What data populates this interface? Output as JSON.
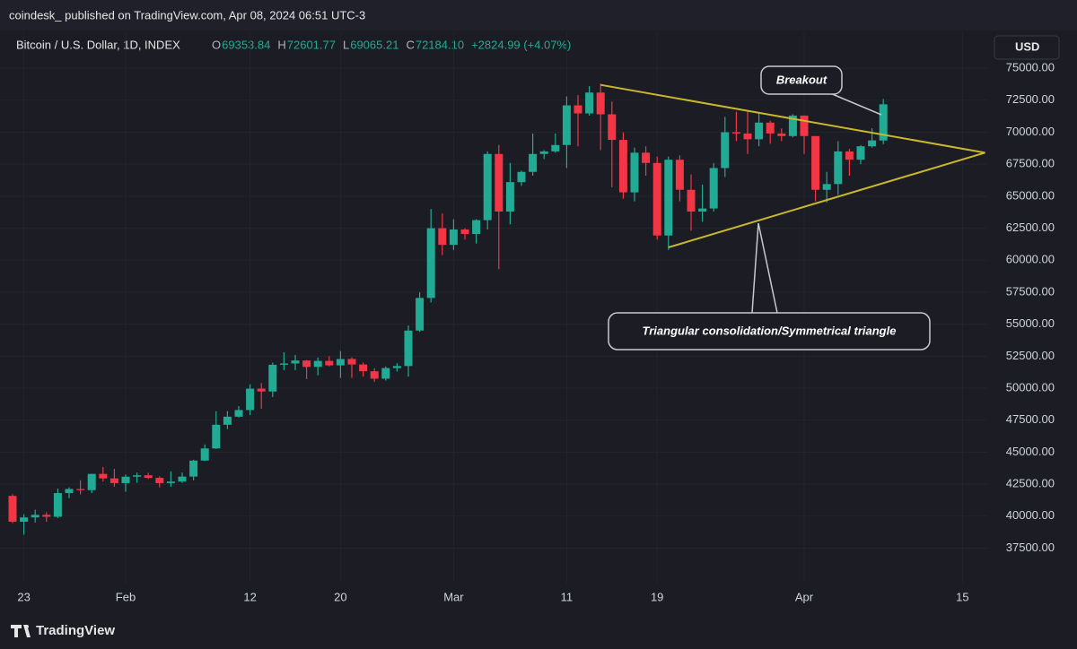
{
  "header": {
    "published": "coindesk_ published on TradingView.com, Apr 08, 2024 06:51 UTC-3",
    "symbol": "Bitcoin / U.S. Dollar, 1D, INDEX",
    "ohlc": [
      {
        "label": "O",
        "value": "69353.84"
      },
      {
        "label": "H",
        "value": "72601.77"
      },
      {
        "label": "L",
        "value": "69065.21"
      },
      {
        "label": "C",
        "value": "72184.10"
      }
    ],
    "change": "+2824.99 (+4.07%)",
    "currency": "USD"
  },
  "footer": {
    "brand": "TradingView"
  },
  "chart_data": {
    "type": "candlestick",
    "up_color": "#22ab94",
    "down_color": "#f23645",
    "grid": true,
    "x": [
      "2024-01-22",
      "2024-01-23",
      "2024-01-24",
      "2024-01-25",
      "2024-01-26",
      "2024-01-27",
      "2024-01-28",
      "2024-01-29",
      "2024-01-30",
      "2024-01-31",
      "2024-02-01",
      "2024-02-02",
      "2024-02-03",
      "2024-02-04",
      "2024-02-05",
      "2024-02-06",
      "2024-02-07",
      "2024-02-08",
      "2024-02-09",
      "2024-02-10",
      "2024-02-11",
      "2024-02-12",
      "2024-02-13",
      "2024-02-14",
      "2024-02-15",
      "2024-02-16",
      "2024-02-17",
      "2024-02-18",
      "2024-02-19",
      "2024-02-20",
      "2024-02-21",
      "2024-02-22",
      "2024-02-23",
      "2024-02-24",
      "2024-02-25",
      "2024-02-26",
      "2024-02-27",
      "2024-02-28",
      "2024-02-29",
      "2024-03-01",
      "2024-03-02",
      "2024-03-03",
      "2024-03-04",
      "2024-03-05",
      "2024-03-06",
      "2024-03-07",
      "2024-03-08",
      "2024-03-09",
      "2024-03-10",
      "2024-03-11",
      "2024-03-12",
      "2024-03-13",
      "2024-03-14",
      "2024-03-15",
      "2024-03-16",
      "2024-03-17",
      "2024-03-18",
      "2024-03-19",
      "2024-03-20",
      "2024-03-21",
      "2024-03-22",
      "2024-03-23",
      "2024-03-24",
      "2024-03-25",
      "2024-03-26",
      "2024-03-27",
      "2024-03-28",
      "2024-03-29",
      "2024-03-30",
      "2024-03-31",
      "2024-04-01",
      "2024-04-02",
      "2024-04-03",
      "2024-04-04",
      "2024-04-05",
      "2024-04-06",
      "2024-04-07",
      "2024-04-08"
    ],
    "open": [
      41580,
      39560,
      39900,
      40100,
      39950,
      41800,
      42120,
      42030,
      43300,
      42950,
      42580,
      43080,
      43190,
      42990,
      42580,
      42700,
      43090,
      44340,
      45290,
      47140,
      47770,
      48290,
      49960,
      49740,
      51830,
      51930,
      52160,
      51660,
      52130,
      51780,
      52280,
      51850,
      51320,
      50740,
      51570,
      51730,
      54500,
      57050,
      62500,
      61200,
      62400,
      62050,
      63130,
      68300,
      63800,
      66100,
      66900,
      68300,
      68500,
      69000,
      72100,
      71470,
      73100,
      71400,
      69400,
      65300,
      68400,
      67600,
      61930,
      67850,
      65500,
      63800,
      64040,
      67200,
      70000,
      69900,
      69450,
      70750,
      69900,
      69700,
      71300,
      69700,
      65500,
      65950,
      68500,
      67850,
      68900,
      69353.84
    ],
    "high": [
      41700,
      40150,
      40500,
      40300,
      42150,
      42250,
      42800,
      43300,
      43850,
      43700,
      43250,
      43400,
      43380,
      43100,
      43500,
      43400,
      44400,
      45600,
      48200,
      48200,
      48600,
      50300,
      50400,
      52000,
      52800,
      52600,
      52200,
      52400,
      52500,
      52900,
      52400,
      52000,
      51550,
      51700,
      51950,
      54900,
      57500,
      64000,
      63650,
      63200,
      62500,
      63200,
      68500,
      69000,
      67600,
      67000,
      69900,
      68600,
      69900,
      72800,
      72900,
      73600,
      73800,
      72400,
      70000,
      68800,
      68900,
      68100,
      68100,
      68200,
      66700,
      65900,
      67600,
      71200,
      71600,
      71700,
      71500,
      70900,
      70300,
      71400,
      71300,
      69700,
      66900,
      69300,
      68700,
      69000,
      70300,
      72601.77
    ],
    "low": [
      39450,
      38550,
      39500,
      39550,
      39850,
      41400,
      41700,
      41800,
      42700,
      42300,
      41900,
      42600,
      42900,
      42250,
      42300,
      42600,
      42800,
      44300,
      45250,
      46800,
      47700,
      47900,
      48400,
      49300,
      51400,
      51400,
      50700,
      51000,
      51700,
      50800,
      50800,
      50900,
      50500,
      50600,
      51300,
      50900,
      54400,
      56700,
      60400,
      60800,
      61600,
      61300,
      62400,
      59300,
      62800,
      65800,
      66600,
      67900,
      68400,
      67200,
      68900,
      71300,
      68600,
      65700,
      64800,
      64600,
      66600,
      61600,
      60800,
      64600,
      62300,
      63000,
      63800,
      66500,
      69300,
      68300,
      68900,
      69100,
      69300,
      69600,
      68300,
      64600,
      64500,
      65100,
      66600,
      67500,
      68800,
      69065.21
    ],
    "close": [
      39560,
      39900,
      40100,
      39950,
      41800,
      42120,
      42030,
      43300,
      42950,
      42580,
      43080,
      43190,
      42990,
      42580,
      42700,
      43090,
      44340,
      45290,
      47140,
      47770,
      48290,
      49960,
      49740,
      51830,
      51930,
      52160,
      51660,
      52130,
      51780,
      52280,
      51850,
      51320,
      50740,
      51570,
      51730,
      54500,
      57050,
      62500,
      61200,
      62400,
      62050,
      63130,
      68300,
      63800,
      66100,
      66900,
      68300,
      68500,
      69000,
      72100,
      71470,
      73100,
      71400,
      69400,
      65300,
      68400,
      67600,
      61930,
      67850,
      65500,
      63800,
      64040,
      67200,
      70000,
      69900,
      69450,
      70750,
      69900,
      69700,
      71300,
      69700,
      65500,
      65950,
      68500,
      67850,
      68900,
      69360,
      72184.1
    ],
    "ylim": [
      34800,
      77250
    ],
    "yticks": [
      {
        "value": 37500,
        "label": "37500.00"
      },
      {
        "value": 40000,
        "label": "40000.00"
      },
      {
        "value": 42500,
        "label": "42500.00"
      },
      {
        "value": 45000,
        "label": "45000.00"
      },
      {
        "value": 47500,
        "label": "47500.00"
      },
      {
        "value": 50000,
        "label": "50000.00"
      },
      {
        "value": 52500,
        "label": "52500.00"
      },
      {
        "value": 55000,
        "label": "55000.00"
      },
      {
        "value": 57500,
        "label": "57500.00"
      },
      {
        "value": 60000,
        "label": "60000.00"
      },
      {
        "value": 62500,
        "label": "62500.00"
      },
      {
        "value": 65000,
        "label": "65000.00"
      },
      {
        "value": 67500,
        "label": "67500.00"
      },
      {
        "value": 70000,
        "label": "70000.00"
      },
      {
        "value": 72500,
        "label": "72500.00"
      },
      {
        "value": 75000,
        "label": "75000.00"
      }
    ],
    "xticks": [
      {
        "value": "2024-01-23",
        "label": "23"
      },
      {
        "value": "2024-02-01",
        "label": "Feb"
      },
      {
        "value": "2024-02-12",
        "label": "12"
      },
      {
        "value": "2024-02-20",
        "label": "20"
      },
      {
        "value": "2024-03-01",
        "label": "Mar"
      },
      {
        "value": "2024-03-11",
        "label": "11"
      },
      {
        "value": "2024-03-19",
        "label": "19"
      },
      {
        "value": "2024-04-01",
        "label": "Apr"
      },
      {
        "value": "2024-04-15",
        "label": "15"
      }
    ],
    "trendlines": [
      {
        "color": "#c9b82c",
        "points": [
          [
            "2024-03-14",
            73700
          ],
          [
            "2024-04-17",
            68400
          ]
        ]
      },
      {
        "color": "#c9b82c",
        "points": [
          [
            "2024-03-20",
            61000
          ],
          [
            "2024-04-17",
            68400
          ]
        ]
      }
    ],
    "annotations": [
      "Breakout",
      "Triangular consolidation/Symmetrical triangle"
    ]
  }
}
